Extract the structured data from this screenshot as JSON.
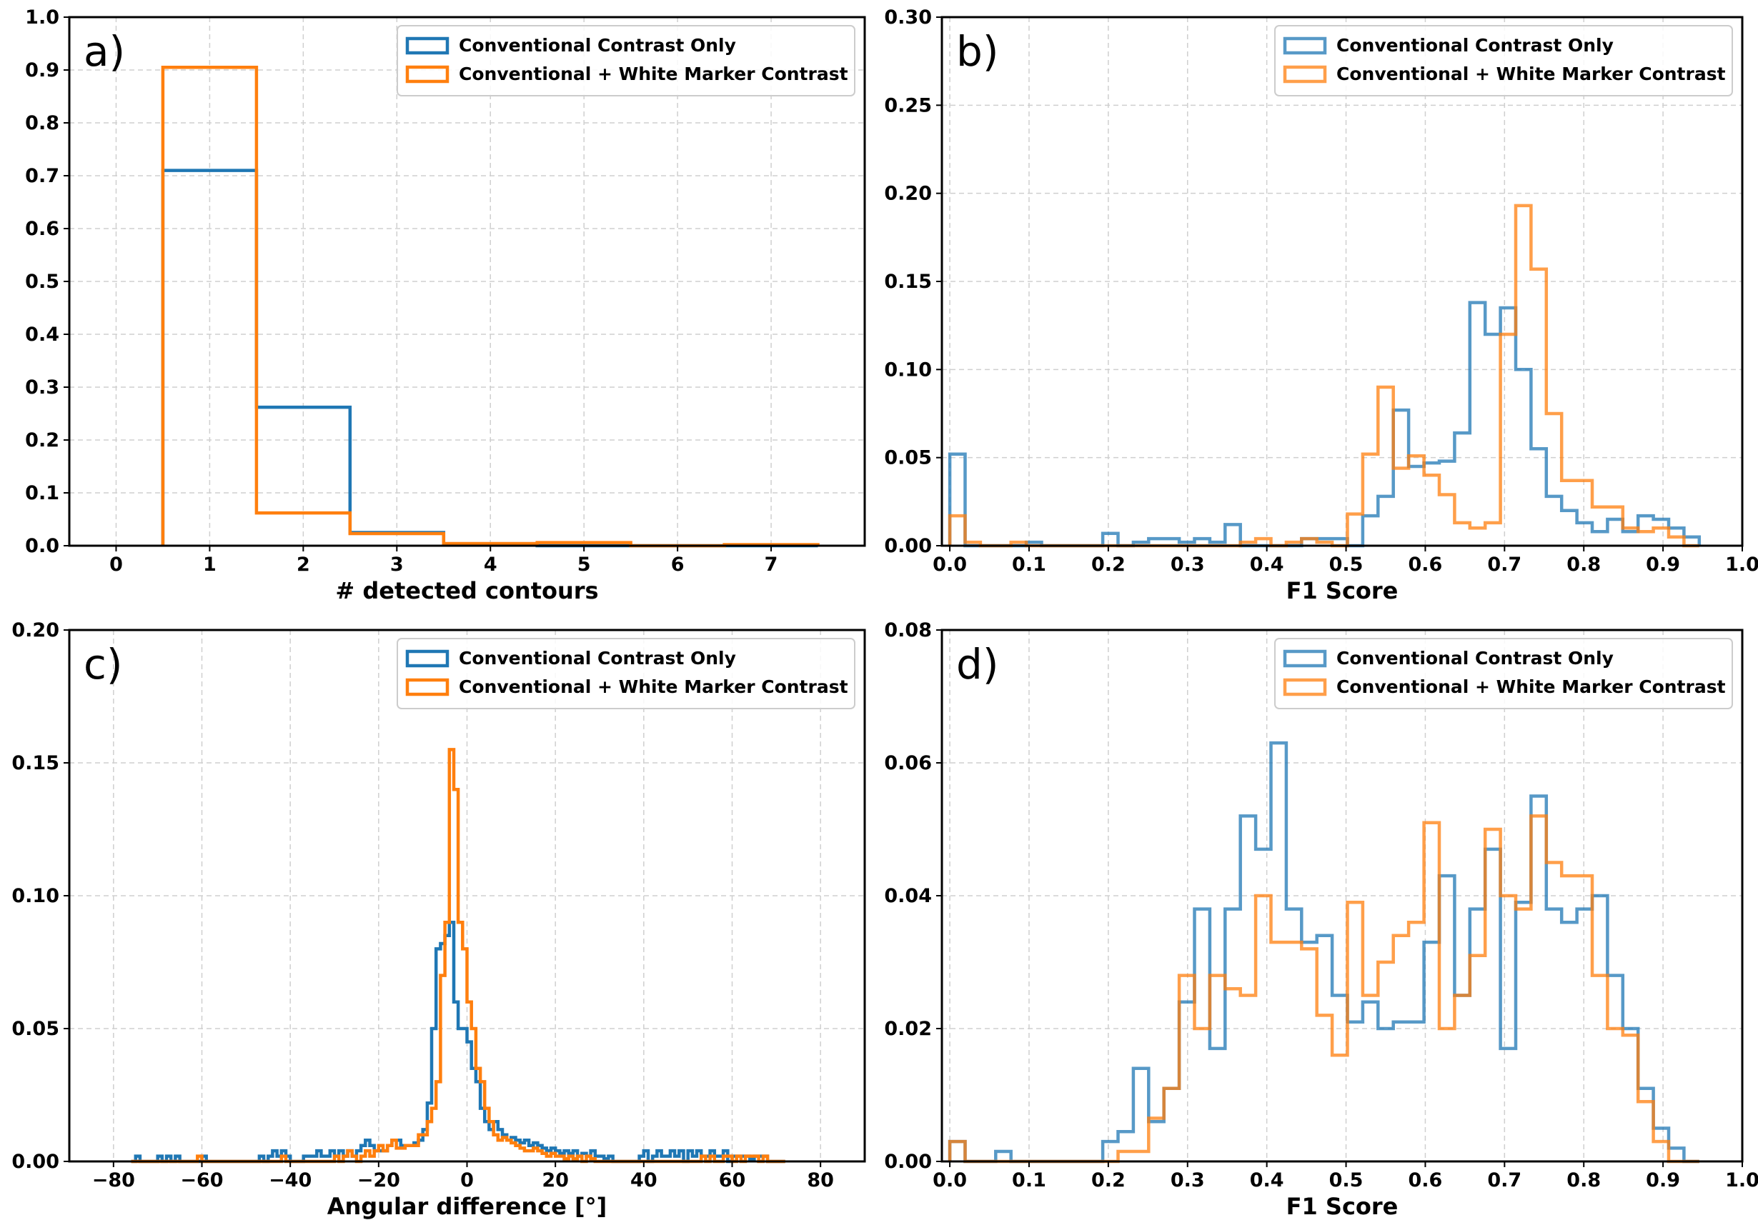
{
  "colors": {
    "series1": "#1f77b4",
    "series2": "#ff7f0e"
  },
  "chart_data": [
    {
      "type": "bar",
      "panel_label": "a)",
      "xlabel": "# detected contours",
      "ylabel": "",
      "xlim": [
        -0.5,
        8.0
      ],
      "ylim": [
        0,
        1.0
      ],
      "xticks": [
        0,
        1,
        2,
        3,
        4,
        5,
        6,
        7
      ],
      "xtick_labels": [
        "0",
        "1",
        "2",
        "3",
        "4",
        "5",
        "6",
        "7"
      ],
      "yticks": [
        0,
        0.1,
        0.2,
        0.3,
        0.4,
        0.5,
        0.6,
        0.7,
        0.8,
        0.9,
        1.0
      ],
      "ytick_labels": [
        "0.0",
        "0.1",
        "0.2",
        "0.3",
        "0.4",
        "0.5",
        "0.6",
        "0.7",
        "0.8",
        "0.9",
        "1.0"
      ],
      "legend": {
        "position": "top-right"
      },
      "series": [
        {
          "name": "Conventional Contrast Only",
          "color_key": "series1",
          "edges": [
            0.5,
            1.5,
            2.5,
            3.5,
            4.5,
            5.5,
            6.5,
            7.5
          ],
          "values": [
            0.71,
            0.262,
            0.025,
            0.002,
            0.0,
            0.0,
            0.0
          ]
        },
        {
          "name": "Conventional + White Marker Contrast",
          "color_key": "series2",
          "edges": [
            0.5,
            1.5,
            2.5,
            3.5,
            4.5,
            5.5,
            6.5,
            7.5
          ],
          "values": [
            0.905,
            0.062,
            0.023,
            0.004,
            0.006,
            0.0,
            0.002
          ]
        }
      ]
    },
    {
      "type": "bar",
      "panel_label": "b)",
      "xlabel": "F1 Score",
      "ylabel": "",
      "xlim": [
        -0.01,
        1.0
      ],
      "ylim": [
        0,
        0.3
      ],
      "xticks": [
        0,
        0.1,
        0.2,
        0.3,
        0.4,
        0.5,
        0.6,
        0.7,
        0.8,
        0.9,
        1.0
      ],
      "xtick_labels": [
        "0.0",
        "0.1",
        "0.2",
        "0.3",
        "0.4",
        "0.5",
        "0.6",
        "0.7",
        "0.8",
        "0.9",
        "1.0"
      ],
      "yticks": [
        0,
        0.05,
        0.1,
        0.15,
        0.2,
        0.25,
        0.3
      ],
      "ytick_labels": [
        "0.00",
        "0.05",
        "0.10",
        "0.15",
        "0.20",
        "0.25",
        "0.30"
      ],
      "legend": {
        "position": "top-right"
      },
      "series": [
        {
          "name": "Conventional Contrast Only",
          "color_key": "series1",
          "bin_start": 0.0,
          "bin_width": 0.0193,
          "values": [
            0.052,
            0,
            0,
            0,
            0,
            0.002,
            0,
            0,
            0,
            0,
            0.007,
            0,
            0.002,
            0.004,
            0.004,
            0.002,
            0.004,
            0.002,
            0.012,
            0,
            0,
            0,
            0,
            0.004,
            0.004,
            0.004,
            0,
            0.017,
            0.028,
            0.077,
            0.045,
            0.047,
            0.048,
            0.064,
            0.138,
            0.12,
            0.135,
            0.1,
            0.055,
            0.028,
            0.02,
            0.013,
            0.008,
            0.015,
            0.008,
            0.017,
            0.015,
            0.01,
            0.005
          ]
        },
        {
          "name": "Conventional + White Marker Contrast",
          "color_key": "series2",
          "bin_start": 0.0,
          "bin_width": 0.0193,
          "values": [
            0.017,
            0.002,
            0,
            0,
            0.002,
            0,
            0,
            0,
            0,
            0,
            0,
            0,
            0,
            0,
            0,
            0,
            0,
            0,
            0,
            0.002,
            0.004,
            0,
            0.002,
            0.004,
            0.002,
            0,
            0.018,
            0.052,
            0.09,
            0.044,
            0.051,
            0.04,
            0.029,
            0.013,
            0.01,
            0.013,
            0.12,
            0.193,
            0.157,
            0.075,
            0.037,
            0.037,
            0.022,
            0.022,
            0.01,
            0.008,
            0.01,
            0.005,
            0
          ]
        }
      ]
    },
    {
      "type": "bar",
      "panel_label": "c)",
      "xlabel": "Angular difference [°]",
      "ylabel": "",
      "xlim": [
        -90,
        90
      ],
      "ylim": [
        0,
        0.2
      ],
      "xticks": [
        -80,
        -60,
        -40,
        -20,
        0,
        20,
        40,
        60,
        80
      ],
      "xtick_labels": [
        "−80",
        "−60",
        "−40",
        "−20",
        "0",
        "20",
        "40",
        "60",
        "80"
      ],
      "yticks": [
        0,
        0.05,
        0.1,
        0.15,
        0.2
      ],
      "ytick_labels": [
        "0.00",
        "0.05",
        "0.10",
        "0.15",
        "0.20"
      ],
      "legend": {
        "position": "top-right"
      },
      "series": [
        {
          "name": "Conventional Contrast Only",
          "color_key": "series1",
          "bin_start": -76,
          "bin_width": 1,
          "values": [
            0,
            0.002,
            0,
            0,
            0,
            0,
            0.002,
            0,
            0.002,
            0,
            0.002,
            0,
            0,
            0,
            0,
            0,
            0.002,
            0,
            0,
            0,
            0,
            0,
            0,
            0,
            0,
            0,
            0,
            0,
            0,
            0.002,
            0,
            0.002,
            0.004,
            0.002,
            0.004,
            0.002,
            0,
            0,
            0,
            0.002,
            0.002,
            0.002,
            0.004,
            0.002,
            0.002,
            0.004,
            0.002,
            0.004,
            0.002,
            0.004,
            0.002,
            0.004,
            0.006,
            0.008,
            0.006,
            0.004,
            0.004,
            0.004,
            0.006,
            0.008,
            0.008,
            0.006,
            0.006,
            0.006,
            0.007,
            0.008,
            0.012,
            0.022,
            0.05,
            0.08,
            0.082,
            0.085,
            0.09,
            0.06,
            0.05,
            0.05,
            0.045,
            0.035,
            0.03,
            0.02,
            0.015,
            0.012,
            0.015,
            0.012,
            0.01,
            0.008,
            0.009,
            0.008,
            0.007,
            0.008,
            0.006,
            0.007,
            0.006,
            0.005,
            0.004,
            0.005,
            0.004,
            0.003,
            0.004,
            0.003,
            0.004,
            0.002,
            0.003,
            0.002,
            0.004,
            0.002,
            0.002,
            0.001,
            0.002,
            0,
            0,
            0,
            0,
            0,
            0,
            0.002,
            0.004,
            0,
            0.002,
            0.004,
            0.002,
            0.002,
            0.004,
            0.002,
            0.004,
            0,
            0.004,
            0.002,
            0.004,
            0.002,
            0.002,
            0.004,
            0.002,
            0.002,
            0.004,
            0,
            0.002,
            0.002,
            0.002,
            0.002,
            0.001,
            0.002,
            0.002,
            0.002,
            0,
            0,
            0,
            0
          ]
        },
        {
          "name": "Conventional + White Marker Contrast",
          "color_key": "series2",
          "bin_start": -76,
          "bin_width": 1,
          "values": [
            0,
            0,
            0,
            0,
            0,
            0,
            0,
            0,
            0,
            0,
            0,
            0,
            0,
            0,
            0,
            0.002,
            0,
            0,
            0,
            0,
            0,
            0,
            0,
            0,
            0,
            0,
            0,
            0,
            0,
            0,
            0,
            0,
            0,
            0,
            0.002,
            0,
            0,
            0,
            0,
            0,
            0,
            0,
            0,
            0,
            0,
            0,
            0.002,
            0,
            0.002,
            0.004,
            0.002,
            0,
            0.002,
            0.004,
            0.002,
            0.004,
            0.006,
            0.004,
            0.006,
            0.008,
            0.005,
            0.005,
            0.006,
            0.006,
            0.006,
            0.01,
            0.01,
            0.015,
            0.02,
            0.03,
            0.07,
            0.09,
            0.155,
            0.14,
            0.09,
            0.08,
            0.06,
            0.05,
            0.035,
            0.03,
            0.02,
            0.015,
            0.01,
            0.008,
            0.009,
            0.008,
            0.007,
            0.006,
            0.005,
            0.004,
            0.004,
            0.005,
            0.004,
            0.003,
            0.002,
            0.003,
            0.002,
            0.002,
            0.001,
            0.002,
            0.001,
            0.002,
            0,
            0.002,
            0.001,
            0,
            0,
            0,
            0,
            0,
            0,
            0,
            0,
            0,
            0,
            0,
            0,
            0,
            0,
            0,
            0,
            0,
            0,
            0,
            0,
            0,
            0,
            0,
            0,
            0.002,
            0,
            0.002,
            0,
            0,
            0.002,
            0.002,
            0,
            0.002,
            0,
            0.002,
            0.002,
            0.002,
            0,
            0.002,
            0,
            0,
            0,
            0
          ]
        }
      ]
    },
    {
      "type": "bar",
      "panel_label": "d)",
      "xlabel": "F1 Score",
      "ylabel": "",
      "xlim": [
        -0.01,
        1.0
      ],
      "ylim": [
        0,
        0.08
      ],
      "xticks": [
        0,
        0.1,
        0.2,
        0.3,
        0.4,
        0.5,
        0.6,
        0.7,
        0.8,
        0.9,
        1.0
      ],
      "xtick_labels": [
        "0.0",
        "0.1",
        "0.2",
        "0.3",
        "0.4",
        "0.5",
        "0.6",
        "0.7",
        "0.8",
        "0.9",
        "1.0"
      ],
      "yticks": [
        0,
        0.02,
        0.04,
        0.06,
        0.08
      ],
      "ytick_labels": [
        "0.00",
        "0.02",
        "0.04",
        "0.06",
        "0.08"
      ],
      "legend": {
        "position": "top-right"
      },
      "series": [
        {
          "name": "Conventional Contrast Only",
          "color_key": "series1",
          "bin_start": 0.0,
          "bin_width": 0.0193,
          "values": [
            0.003,
            0,
            0,
            0.0015,
            0,
            0,
            0,
            0,
            0,
            0,
            0.003,
            0.0045,
            0.014,
            0.006,
            0.011,
            0.024,
            0.038,
            0.017,
            0.038,
            0.052,
            0.047,
            0.063,
            0.038,
            0.033,
            0.034,
            0.025,
            0.021,
            0.024,
            0.02,
            0.021,
            0.021,
            0.033,
            0.043,
            0.025,
            0.038,
            0.047,
            0.017,
            0.039,
            0.055,
            0.038,
            0.036,
            0.038,
            0.04,
            0.028,
            0.02,
            0.011,
            0.005,
            0.002,
            0
          ]
        },
        {
          "name": "Conventional + White Marker Contrast",
          "color_key": "series2",
          "bin_start": 0.0,
          "bin_width": 0.0193,
          "values": [
            0.003,
            0,
            0,
            0,
            0,
            0,
            0,
            0,
            0,
            0,
            0,
            0.0015,
            0.0015,
            0.0065,
            0.011,
            0.028,
            0.02,
            0.028,
            0.026,
            0.025,
            0.04,
            0.033,
            0.033,
            0.032,
            0.022,
            0.016,
            0.039,
            0.025,
            0.03,
            0.034,
            0.036,
            0.051,
            0.02,
            0.025,
            0.031,
            0.05,
            0.04,
            0.038,
            0.052,
            0.045,
            0.043,
            0.043,
            0.028,
            0.02,
            0.019,
            0.009,
            0.003,
            0,
            0
          ]
        }
      ]
    }
  ]
}
